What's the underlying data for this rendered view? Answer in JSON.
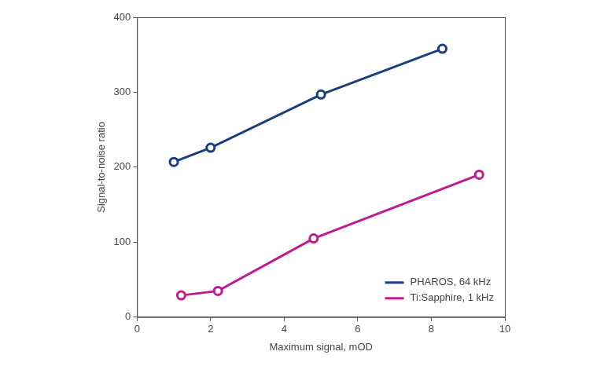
{
  "chart_data": {
    "type": "line",
    "x_label": "Maximum signal, mOD",
    "y_label": "Signal-to-noise ratio",
    "xlim": [
      0,
      10
    ],
    "xticks": [
      0,
      2,
      4,
      6,
      8,
      10
    ],
    "ylim": [
      0,
      400
    ],
    "yticks": [
      0,
      100,
      200,
      300,
      400
    ],
    "grid": false,
    "legend": "lower right",
    "marker": "circle",
    "series": [
      {
        "name": "PHAROS, 64 kHz",
        "color": "#1b3f7e",
        "x": [
          1.0,
          2.0,
          5.0,
          8.3
        ],
        "values": [
          207,
          226,
          297,
          358
        ]
      },
      {
        "name": "Ti:Sapphire, 1 kHz",
        "color": "#c01a8f",
        "x": [
          1.2,
          2.2,
          4.8,
          9.3
        ],
        "values": [
          29,
          35,
          105,
          190
        ]
      }
    ]
  }
}
